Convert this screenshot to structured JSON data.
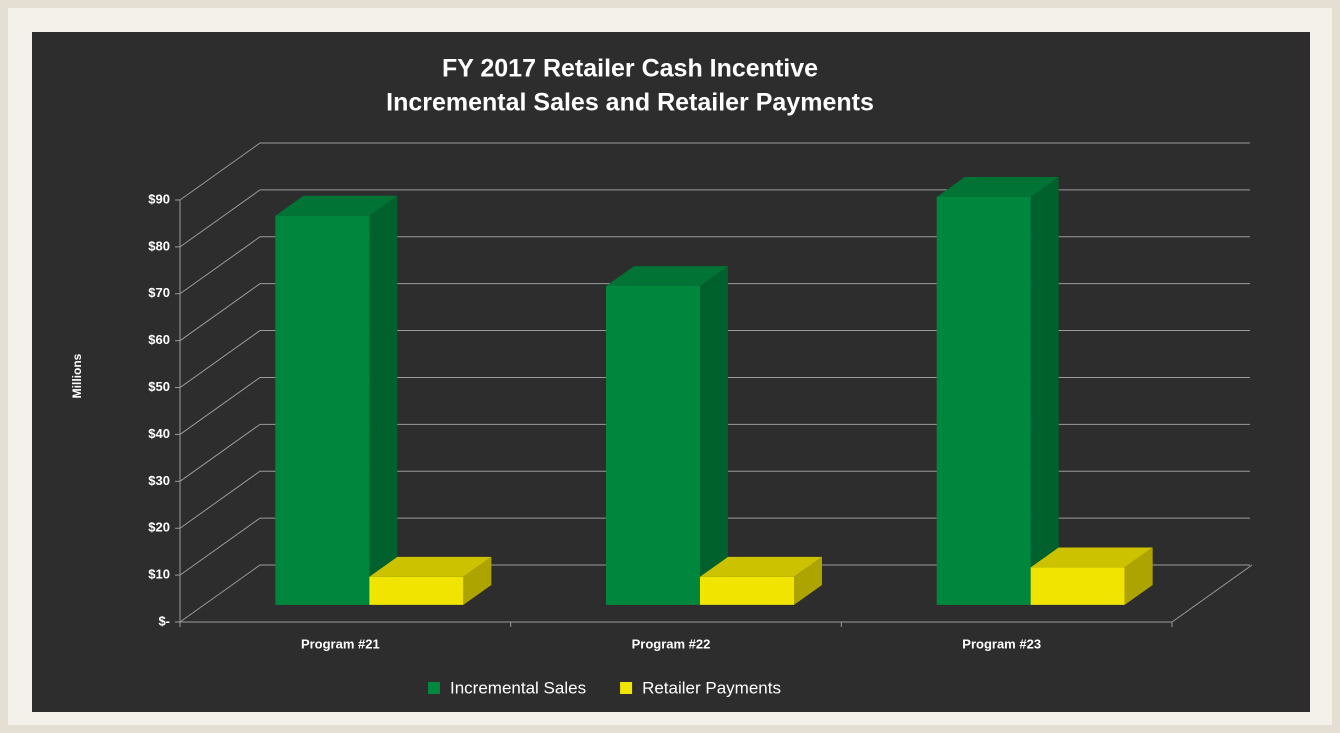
{
  "chart_data": {
    "type": "bar3d",
    "title": [
      "FY 2017 Retailer Cash Incentive",
      "Incremental Sales and Retailer Payments"
    ],
    "y_label": "Millions",
    "categories": [
      "Program #21",
      "Program #22",
      "Program #23"
    ],
    "series": [
      {
        "name": "Incremental Sales",
        "color": "#00873e",
        "values": [
          83,
          68,
          87
        ]
      },
      {
        "name": "Retailer Payments",
        "color": "#f0e400",
        "values": [
          6,
          6,
          8
        ]
      }
    ],
    "ylim": [
      0,
      90
    ],
    "yticks": [
      {
        "value": 0,
        "label": "$-"
      },
      {
        "value": 10,
        "label": "$10"
      },
      {
        "value": 20,
        "label": "$20"
      },
      {
        "value": 30,
        "label": "$30"
      },
      {
        "value": 40,
        "label": "$40"
      },
      {
        "value": 50,
        "label": "$50"
      },
      {
        "value": 60,
        "label": "$60"
      },
      {
        "value": 70,
        "label": "$70"
      },
      {
        "value": 80,
        "label": "$80"
      },
      {
        "value": 90,
        "label": "$90"
      }
    ],
    "grid": true,
    "legend": "bottom"
  }
}
